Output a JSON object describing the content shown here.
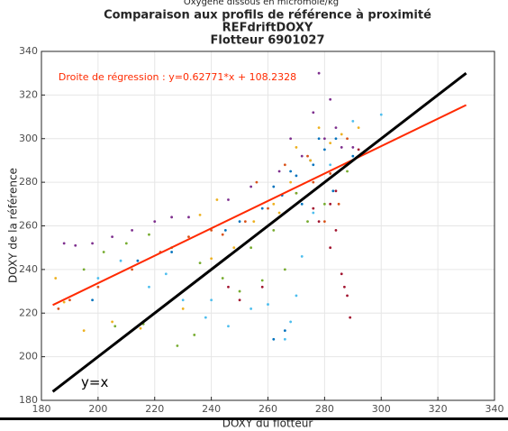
{
  "chart_data": {
    "type": "scatter",
    "header_note": "Oxygène dissous en micromole/kg",
    "title": [
      "Comparaison aux profils de référence à proximité",
      "REFdriftDOXY",
      "Flotteur 6901027"
    ],
    "x_label": "DOXY du flotteur",
    "y_label": "DOXY de la référence",
    "xlim": [
      180,
      340
    ],
    "ylim": [
      180,
      340
    ],
    "xticks": [
      180,
      200,
      220,
      240,
      260,
      280,
      300,
      320,
      340
    ],
    "yticks": [
      180,
      200,
      220,
      240,
      260,
      280,
      300,
      320,
      340
    ],
    "grid": true,
    "series": [
      {
        "color": "#0072BD",
        "x": [
          262,
          268,
          275,
          280,
          284,
          272,
          265,
          258,
          250,
          245,
          290,
          278,
          270,
          226,
          214,
          198,
          262,
          266,
          283,
          276
        ],
        "y": [
          278,
          285,
          290,
          295,
          300,
          270,
          274,
          268,
          262,
          258,
          292,
          300,
          283,
          248,
          244,
          226,
          208,
          212,
          276,
          288
        ]
      },
      {
        "color": "#D95319",
        "x": [
          270,
          276,
          282,
          288,
          260,
          252,
          240,
          232,
          222,
          212,
          200,
          190,
          186,
          280,
          285,
          274,
          266,
          244,
          256,
          288
        ],
        "y": [
          275,
          280,
          284,
          288,
          268,
          262,
          258,
          255,
          248,
          240,
          232,
          226,
          222,
          262,
          270,
          292,
          288,
          256,
          280,
          300
        ]
      },
      {
        "color": "#EDB120",
        "x": [
          185,
          188,
          195,
          205,
          215,
          230,
          240,
          248,
          255,
          262,
          268,
          275,
          282,
          286,
          292,
          242,
          236,
          270,
          278,
          264
        ],
        "y": [
          236,
          225,
          212,
          216,
          213,
          222,
          245,
          250,
          262,
          270,
          280,
          290,
          298,
          302,
          305,
          272,
          265,
          296,
          305,
          266
        ]
      },
      {
        "color": "#7E2F8E",
        "x": [
          188,
          192,
          198,
          205,
          212,
          220,
          226,
          232,
          246,
          254,
          264,
          272,
          280,
          286,
          290,
          278,
          282,
          284,
          276,
          268
        ],
        "y": [
          252,
          251,
          252,
          255,
          258,
          262,
          264,
          264,
          272,
          278,
          285,
          292,
          300,
          296,
          296,
          330,
          318,
          305,
          312,
          300
        ]
      },
      {
        "color": "#77AC30",
        "x": [
          195,
          202,
          210,
          218,
          226,
          236,
          244,
          250,
          258,
          266,
          274,
          280,
          288,
          228,
          234,
          216,
          206,
          270,
          262,
          254
        ],
        "y": [
          240,
          248,
          252,
          256,
          250,
          243,
          236,
          230,
          235,
          240,
          262,
          270,
          285,
          205,
          210,
          215,
          214,
          275,
          258,
          250
        ]
      },
      {
        "color": "#4DBEEE",
        "x": [
          200,
          208,
          218,
          230,
          238,
          246,
          254,
          260,
          266,
          270,
          272,
          276,
          282,
          224,
          240,
          268,
          290,
          300
        ],
        "y": [
          236,
          244,
          232,
          226,
          218,
          214,
          222,
          224,
          208,
          228,
          246,
          266,
          288,
          238,
          226,
          216,
          308,
          311
        ]
      },
      {
        "color": "#A2142F",
        "x": [
          278,
          282,
          286,
          287,
          288,
          289,
          246,
          250,
          258,
          282,
          284,
          276,
          292,
          284
        ],
        "y": [
          262,
          250,
          238,
          232,
          228,
          218,
          232,
          226,
          232,
          270,
          276,
          268,
          295,
          258
        ]
      }
    ],
    "lines": [
      {
        "color": "#ff2a00",
        "width": 2,
        "x": [
          184,
          330
        ],
        "y": [
          223.7,
          315.4
        ]
      },
      {
        "color": "#000000",
        "width": 3,
        "x": [
          184,
          330
        ],
        "y": [
          184,
          330
        ]
      }
    ],
    "annotations": [
      {
        "text": "Droite de régression : y=0.62771*x + 108.2328",
        "color": "#ff2a00",
        "x": 186,
        "y": 328
      },
      {
        "text": "y=x",
        "color": "#000000",
        "x": 194,
        "y": 188
      }
    ]
  }
}
